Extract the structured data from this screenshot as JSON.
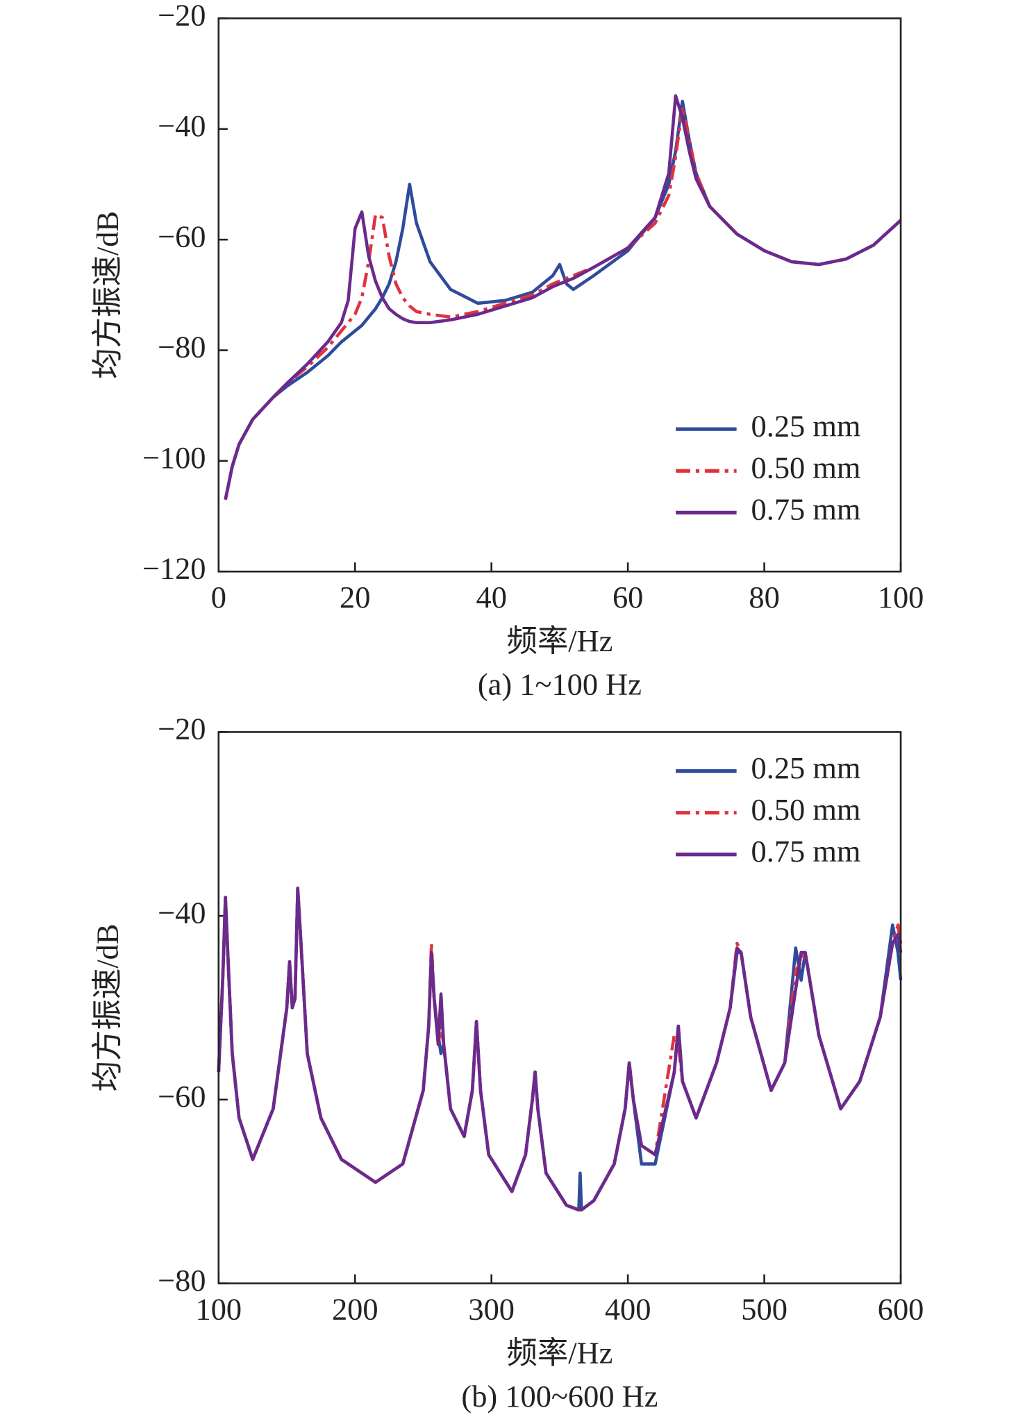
{
  "chart_data": [
    {
      "type": "line",
      "caption": "(a) 1~100 Hz",
      "xlabel": "频率/Hz",
      "ylabel": "均方振速/dB",
      "xlim": [
        0,
        100
      ],
      "xticks": [
        0,
        20,
        40,
        60,
        80,
        100
      ],
      "ylim": [
        -120,
        -20
      ],
      "yticks": [
        {
          "value": -120,
          "label": "−120"
        },
        {
          "value": -100,
          "label": "−100"
        },
        {
          "value": -80,
          "label": "−80"
        },
        {
          "value": -60,
          "label": "−60"
        },
        {
          "value": -40,
          "label": "−40"
        },
        {
          "value": -20,
          "label": "−20"
        }
      ],
      "legend": "lower right",
      "x": [
        1,
        2,
        3,
        5,
        8,
        10,
        13,
        16,
        18,
        19,
        20,
        21,
        22,
        23,
        24,
        25,
        26,
        27,
        28,
        29,
        31,
        34,
        38,
        42,
        46,
        49,
        50,
        51,
        52,
        55,
        60,
        64,
        66,
        67,
        68,
        69,
        70,
        72,
        76,
        80,
        84,
        88,
        92,
        96,
        100
      ],
      "series": [
        {
          "name": "0.25 mm",
          "color": "#2f4b9c",
          "style": "solid",
          "values": [
            -107,
            -101,
            -97,
            -92.5,
            -88.5,
            -86.5,
            -84,
            -81,
            -78.5,
            -77.5,
            -76.5,
            -75.5,
            -74,
            -72.5,
            -70.5,
            -68,
            -64,
            -58,
            -50,
            -57,
            -64,
            -69,
            -71.5,
            -71,
            -69.5,
            -66.5,
            -64.5,
            -68,
            -69,
            -66.5,
            -62,
            -56,
            -50,
            -44,
            -35,
            -42,
            -48,
            -54,
            -59,
            -62,
            -64,
            -64.5,
            -63.5,
            -61,
            -56.5
          ]
        },
        {
          "name": "0.50 mm",
          "color": "#e0333d",
          "style": "dashdot",
          "values": [
            -107,
            -101,
            -97,
            -92.5,
            -88.5,
            -86,
            -83,
            -79.5,
            -76.5,
            -75,
            -73.5,
            -70.5,
            -64,
            -55.5,
            -56,
            -63,
            -68,
            -70.5,
            -72,
            -73,
            -73.5,
            -74,
            -73,
            -71.5,
            -70,
            -68,
            -67.5,
            -67,
            -66.5,
            -65,
            -61.5,
            -57,
            -52,
            -45,
            -36,
            -42,
            -48,
            -54,
            -59,
            -62,
            -64,
            -64.5,
            -63.5,
            -61,
            -56.5
          ]
        },
        {
          "name": "0.75 mm",
          "color": "#6b2a8c",
          "style": "solid",
          "values": [
            -107,
            -101,
            -97,
            -92.5,
            -88.5,
            -86,
            -82.5,
            -78.5,
            -75,
            -71,
            -58,
            -55,
            -63,
            -67.5,
            -70.5,
            -72.5,
            -73.5,
            -74.3,
            -74.8,
            -75,
            -75,
            -74.5,
            -73.5,
            -72,
            -70.5,
            -68.5,
            -68,
            -67.5,
            -67,
            -65,
            -61.5,
            -56,
            -48,
            -34,
            -38,
            -44,
            -49,
            -54,
            -59,
            -62,
            -64,
            -64.5,
            -63.5,
            -61,
            -56.5
          ]
        }
      ]
    },
    {
      "type": "line",
      "caption": "(b) 100~600 Hz",
      "xlabel": "频率/Hz",
      "ylabel": "均方振速/dB",
      "xlim": [
        100,
        600
      ],
      "xticks": [
        100,
        200,
        300,
        400,
        500,
        600
      ],
      "ylim": [
        -80,
        -20
      ],
      "yticks": [
        {
          "value": -80,
          "label": "−80"
        },
        {
          "value": -60,
          "label": "−60"
        },
        {
          "value": -40,
          "label": "−40"
        },
        {
          "value": -20,
          "label": "−20"
        }
      ],
      "legend": "upper right",
      "x": [
        100,
        103,
        105,
        107,
        110,
        115,
        125,
        140,
        150,
        152,
        154,
        156,
        158,
        160,
        165,
        175,
        190,
        215,
        235,
        250,
        254,
        256,
        258,
        261,
        263,
        265,
        270,
        280,
        286,
        289,
        292,
        298,
        315,
        325,
        330,
        332,
        334,
        340,
        355,
        364,
        365,
        366,
        375,
        390,
        398,
        401,
        404,
        410,
        420,
        434,
        437,
        440,
        450,
        465,
        475,
        480,
        483,
        490,
        505,
        515,
        523,
        527,
        530,
        540,
        556,
        570,
        585,
        594,
        598,
        600
      ],
      "series": [
        {
          "name": "0.25 mm",
          "color": "#2f4b9c",
          "style": "solid",
          "values": [
            -57,
            -47,
            -38,
            -45,
            -55,
            -62,
            -66.5,
            -61,
            -50,
            -45,
            -50,
            -49,
            -37,
            -42,
            -55,
            -62,
            -66.5,
            -69,
            -67,
            -59,
            -52,
            -44,
            -49,
            -53,
            -55,
            -54,
            -61,
            -64,
            -59,
            -51.5,
            -59,
            -66,
            -70,
            -66,
            -60,
            -57,
            -61,
            -68,
            -71.5,
            -72,
            -68,
            -72,
            -71,
            -67,
            -61,
            -56,
            -60,
            -67,
            -67,
            -57,
            -52,
            -58,
            -62,
            -56,
            -50,
            -44,
            -44,
            -51,
            -59,
            -56,
            -43.5,
            -47,
            -44,
            -53,
            -61,
            -58,
            -51,
            -41,
            -44,
            -47
          ]
        },
        {
          "name": "0.50 mm",
          "color": "#e0333d",
          "style": "dashdot",
          "values": [
            -57,
            -47,
            -38,
            -45,
            -55,
            -62,
            -66.5,
            -61,
            -50,
            -45,
            -50,
            -49,
            -37,
            -42,
            -55,
            -62,
            -66.5,
            -69,
            -67,
            -59,
            -52,
            -43,
            -49,
            -54,
            -52,
            -54,
            -61,
            -64,
            -59,
            -51.5,
            -59,
            -66,
            -70,
            -66,
            -60,
            -57,
            -61,
            -68,
            -71.5,
            -72,
            -72,
            -72,
            -71,
            -67,
            -61,
            -56,
            -60,
            -65,
            -66,
            -53,
            -54,
            -58,
            -62,
            -56,
            -50,
            -43,
            -44,
            -51,
            -59,
            -56,
            -46,
            -45,
            -44,
            -53,
            -61,
            -58,
            -51,
            -43,
            -41,
            -43
          ]
        },
        {
          "name": "0.75 mm",
          "color": "#6b2a8c",
          "style": "solid",
          "values": [
            -57,
            -47,
            -38,
            -45,
            -55,
            -62,
            -66.5,
            -61,
            -50,
            -45,
            -50,
            -49,
            -37,
            -42,
            -55,
            -62,
            -66.5,
            -69,
            -67,
            -59,
            -52,
            -44,
            -49,
            -54,
            -48.5,
            -54,
            -61,
            -64,
            -59,
            -51.5,
            -59,
            -66,
            -70,
            -66,
            -60,
            -57,
            -61,
            -68,
            -71.5,
            -72,
            -72,
            -72,
            -71,
            -67,
            -61,
            -56,
            -60,
            -65,
            -66,
            -57,
            -52,
            -58,
            -62,
            -56,
            -50,
            -43.5,
            -44,
            -51,
            -59,
            -56,
            -48,
            -44,
            -44,
            -53,
            -61,
            -58,
            -51,
            -43,
            -42,
            -44
          ]
        }
      ]
    }
  ]
}
